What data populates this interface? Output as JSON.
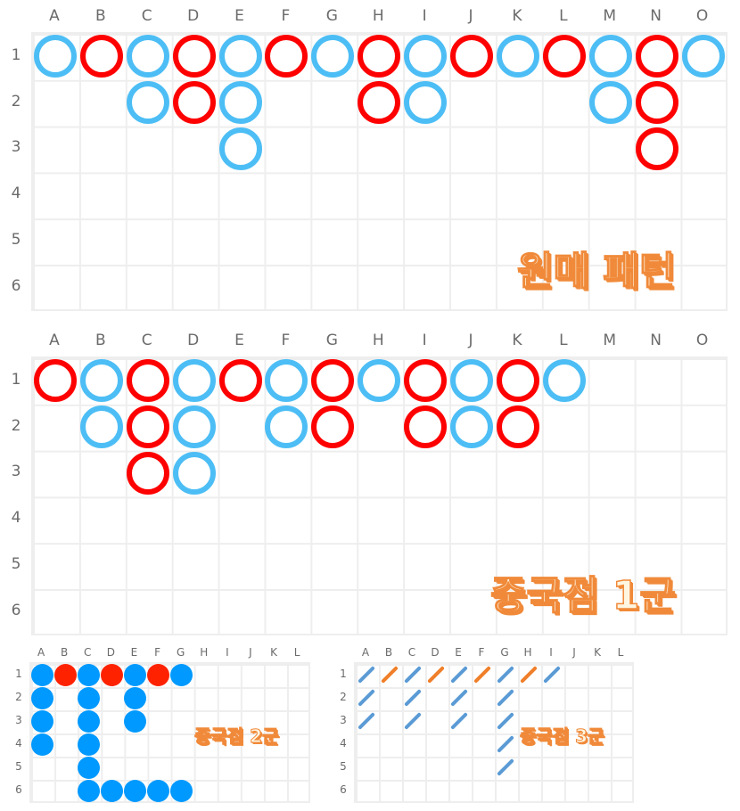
{
  "colors": {
    "blue": "#4dbef5",
    "red": "#ff0000",
    "dot_blue": "#0099ff",
    "dot_red": "#ff2200",
    "slash_blue": "#5b9bd5",
    "slash_orange": "#f07f2a",
    "title": "#f08a3a"
  },
  "boards": [
    {
      "title": "원매 패턴",
      "cols": [
        "A",
        "B",
        "C",
        "D",
        "E",
        "F",
        "G",
        "H",
        "I",
        "J",
        "K",
        "L",
        "M",
        "N",
        "O"
      ],
      "rows": [
        "1",
        "2",
        "3",
        "4",
        "5",
        "6"
      ],
      "style": "ring",
      "columns": [
        "b",
        "r",
        "bb",
        "rr",
        "bbb",
        "r",
        "b",
        "rr",
        "bb",
        "r",
        "b",
        "r",
        "bb",
        "rrr",
        "b"
      ]
    },
    {
      "title": "중국점 1군",
      "cols": [
        "A",
        "B",
        "C",
        "D",
        "E",
        "F",
        "G",
        "H",
        "I",
        "J",
        "K",
        "L",
        "M",
        "N",
        "O"
      ],
      "rows": [
        "1",
        "2",
        "3",
        "4",
        "5",
        "6"
      ],
      "style": "ring",
      "columns": [
        "r",
        "bb",
        "rrr",
        "bbb",
        "r",
        "bb",
        "rr",
        "b",
        "rr",
        "bb",
        "rr",
        "b",
        "",
        "",
        ""
      ]
    },
    {
      "title": "중국점 2군",
      "cols": [
        "A",
        "B",
        "C",
        "D",
        "E",
        "F",
        "G",
        "H",
        "I",
        "J",
        "K",
        "L"
      ],
      "rows": [
        "1",
        "2",
        "3",
        "4",
        "5",
        "6"
      ],
      "style": "dot",
      "columns": [
        "bbbb",
        "r",
        "bbbbbb",
        "r....b",
        "bbb..b",
        "r....b",
        "b....b",
        "",
        "",
        "",
        "",
        ""
      ]
    },
    {
      "title": "중국점 3군",
      "cols": [
        "A",
        "B",
        "C",
        "D",
        "E",
        "F",
        "G",
        "H",
        "I",
        "J",
        "K",
        "L"
      ],
      "rows": [
        "1",
        "2",
        "3",
        "4",
        "5",
        "6"
      ],
      "style": "slash",
      "columns": [
        "bbb",
        "r",
        "bbb",
        "r",
        "bbb",
        "r",
        "bbbbb",
        "r",
        "b",
        "",
        "",
        ""
      ]
    }
  ]
}
